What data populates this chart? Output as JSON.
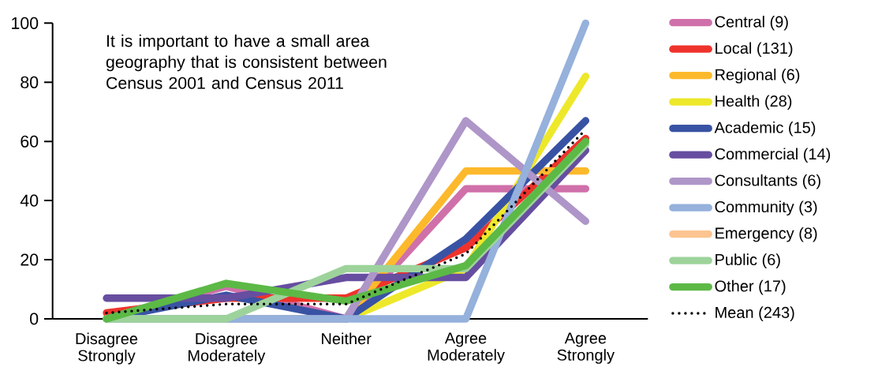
{
  "chart_data": {
    "type": "line",
    "annotations": [
      "It is important to have a small area geography that is consistent between Census 2001 and Census 2011"
    ],
    "categories": [
      "Disagree Strongly",
      "Disagree Moderately",
      "Neither",
      "Agree Moderately",
      "Agree Strongly"
    ],
    "ylim": [
      0,
      100
    ],
    "yticks": [
      0,
      20,
      40,
      60,
      80,
      100
    ],
    "grid": false,
    "legend": "right",
    "marker": "none",
    "line_style": "solid",
    "series": [
      {
        "name": "Central (9)",
        "color": "#d070aa",
        "values": [
          0,
          11,
          0,
          44,
          44
        ]
      },
      {
        "name": "Local (131)",
        "color": "#ee332c",
        "values": [
          2,
          7,
          7,
          24,
          61
        ]
      },
      {
        "name": "Regional (6)",
        "color": "#fdb92c",
        "values": [
          0,
          0,
          0,
          50,
          50
        ]
      },
      {
        "name": "Health (28)",
        "color": "#eee82a",
        "values": [
          0,
          0,
          0,
          17,
          82
        ]
      },
      {
        "name": "Academic (15)",
        "color": "#3953a4",
        "values": [
          0,
          8,
          0,
          27,
          67
        ]
      },
      {
        "name": "Commercial (14)",
        "color": "#674ea0",
        "values": [
          7,
          7,
          14,
          14,
          57
        ]
      },
      {
        "name": "Consultants (6)",
        "color": "#ae96c8",
        "values": [
          0,
          0,
          0,
          67,
          33
        ]
      },
      {
        "name": "Community (3)",
        "color": "#95b1dc",
        "values": [
          0,
          0,
          0,
          0,
          100
        ]
      },
      {
        "name": "Emergency (8)",
        "color": "#fcc490",
        "values": [
          null,
          null,
          null,
          null,
          null
        ]
      },
      {
        "name": "Public (6)",
        "color": "#9dd39b",
        "values": [
          0,
          0,
          17,
          17,
          59
        ]
      },
      {
        "name": "Other (17)",
        "color": "#5cb946",
        "values": [
          0,
          12,
          6,
          18,
          60
        ]
      },
      {
        "name": "Mean (243)",
        "color": "#000000",
        "line_style": "dotted",
        "values": [
          2,
          5,
          5,
          22,
          64
        ]
      }
    ]
  }
}
